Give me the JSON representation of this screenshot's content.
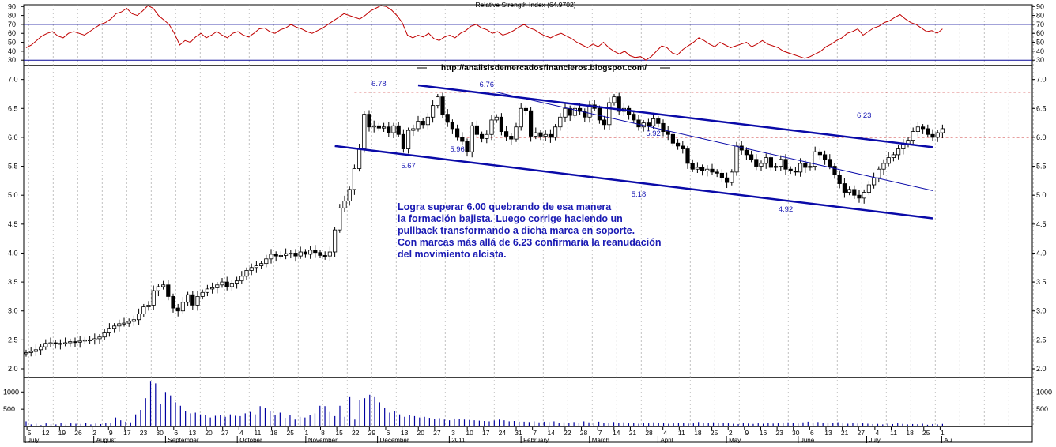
{
  "chart_data": [
    {
      "type": "line",
      "title": "Relative Strength Index (64.9702)",
      "yticks": [
        30,
        40,
        50,
        60,
        70,
        80,
        90
      ],
      "ylim": [
        24,
        92
      ],
      "reference_lines": [
        70,
        30
      ],
      "series": [
        {
          "color": "#c00000",
          "values": [
            44,
            47,
            52,
            57,
            60,
            62,
            57,
            55,
            60,
            62,
            60,
            58,
            62,
            66,
            70,
            72,
            76,
            82,
            84,
            88,
            82,
            80,
            85,
            91,
            88,
            80,
            75,
            70,
            60,
            47,
            52,
            50,
            56,
            60,
            55,
            58,
            62,
            58,
            55,
            60,
            62,
            58,
            56,
            60,
            65,
            66,
            62,
            60,
            64,
            66,
            70,
            67,
            65,
            62,
            60,
            63,
            66,
            70,
            74,
            78,
            82,
            80,
            78,
            76,
            80,
            85,
            88,
            91,
            90,
            86,
            80,
            72,
            58,
            55,
            58,
            56,
            60,
            54,
            52,
            56,
            58,
            55,
            60,
            63,
            68,
            70,
            66,
            64,
            60,
            62,
            58,
            60,
            63,
            67,
            70,
            66,
            64,
            60,
            57,
            55,
            58,
            60,
            57,
            54,
            50,
            47,
            44,
            48,
            45,
            50,
            44,
            40,
            37,
            40,
            35,
            33,
            34,
            30,
            34,
            40,
            46,
            44,
            38,
            36,
            42,
            46,
            50,
            55,
            52,
            48,
            45,
            50,
            47,
            44,
            46,
            48,
            50,
            45,
            48,
            52,
            48,
            46,
            44,
            40,
            38,
            36,
            34,
            32,
            34,
            37,
            40,
            45,
            48,
            52,
            55,
            60,
            62,
            65,
            58,
            62,
            66,
            68,
            72,
            74,
            78,
            81,
            76,
            72,
            70,
            66,
            62,
            63,
            60,
            65
          ]
        }
      ]
    },
    {
      "type": "candlestick",
      "yticks": [
        "7.0",
        "6.5",
        "6.0",
        "5.5",
        "5.0",
        "4.5",
        "4.0",
        "3.5",
        "3.0",
        "2.5",
        "2.0"
      ],
      "ylim": [
        1.85,
        7.2
      ],
      "watermark": "http://analisisdemercadosfinancieros.blogspot.com/",
      "price_labels": [
        {
          "text": "6.78",
          "index": 72
        },
        {
          "text": "6.76",
          "index": 94
        },
        {
          "text": "5.67",
          "index": 78
        },
        {
          "text": "5.96",
          "index": 88
        },
        {
          "text": "5.92",
          "index": 128
        },
        {
          "text": "5.18",
          "index": 125
        },
        {
          "text": "4.92",
          "index": 155
        },
        {
          "text": "6.23",
          "index": 171
        }
      ],
      "resistance_lines": [
        {
          "value": 6.78,
          "from_index": 67,
          "color": "#c00000",
          "style": "dashed"
        },
        {
          "value": 6.0,
          "from_index": 88,
          "color": "#c00000",
          "style": "dashed"
        }
      ],
      "trend_lines": [
        {
          "from": [
            80,
            6.9
          ],
          "to": [
            185,
            5.83
          ],
          "color": "#0a0aa8",
          "weight": "thick"
        },
        {
          "from": [
            63,
            5.85
          ],
          "to": [
            185,
            4.6
          ],
          "color": "#0a0aa8",
          "weight": "thick"
        },
        {
          "from": [
            96,
            6.78
          ],
          "to": [
            185,
            5.08
          ],
          "color": "#0a0aa8",
          "weight": "thin"
        }
      ],
      "close": [
        2.28,
        2.3,
        2.33,
        2.38,
        2.44,
        2.45,
        2.43,
        2.44,
        2.45,
        2.47,
        2.46,
        2.48,
        2.5,
        2.5,
        2.52,
        2.55,
        2.62,
        2.7,
        2.74,
        2.78,
        2.79,
        2.82,
        2.85,
        2.95,
        3.07,
        3.1,
        3.35,
        3.42,
        3.45,
        3.25,
        3.05,
        3.0,
        3.15,
        3.28,
        3.1,
        3.25,
        3.32,
        3.38,
        3.4,
        3.45,
        3.5,
        3.42,
        3.48,
        3.52,
        3.6,
        3.7,
        3.75,
        3.78,
        3.82,
        3.9,
        3.98,
        3.95,
        3.96,
        3.99,
        4.0,
        3.95,
        4.02,
        3.98,
        4.05,
        4.01,
        3.96,
        3.95,
        4.02,
        4.4,
        4.78,
        4.9,
        5.1,
        5.46,
        5.8,
        6.4,
        6.18,
        6.2,
        6.16,
        6.18,
        6.08,
        6.2,
        6.05,
        5.8,
        6.12,
        6.15,
        6.28,
        6.22,
        6.35,
        6.55,
        6.7,
        6.4,
        6.26,
        6.15,
        6.0,
        5.93,
        5.75,
        6.2,
        6.05,
        5.98,
        6.05,
        6.3,
        6.35,
        6.1,
        6.02,
        5.97,
        6.18,
        6.5,
        6.46,
        6.02,
        6.08,
        6.02,
        6.05,
        6.0,
        6.18,
        6.35,
        6.5,
        6.38,
        6.5,
        6.45,
        6.35,
        6.56,
        6.5,
        6.3,
        6.22,
        6.6,
        6.7,
        6.45,
        6.5,
        6.4,
        6.3,
        6.18,
        6.25,
        6.2,
        6.32,
        6.24,
        6.1,
        6.05,
        5.9,
        5.85,
        5.8,
        5.55,
        5.45,
        5.48,
        5.42,
        5.45,
        5.4,
        5.38,
        5.3,
        5.22,
        5.4,
        5.85,
        5.78,
        5.7,
        5.62,
        5.5,
        5.55,
        5.65,
        5.48,
        5.5,
        5.62,
        5.45,
        5.42,
        5.4,
        5.55,
        5.48,
        5.5,
        5.75,
        5.7,
        5.62,
        5.5,
        5.35,
        5.2,
        5.05,
        5.1,
        5.0,
        4.95,
        5.05,
        5.18,
        5.3,
        5.45,
        5.55,
        5.65,
        5.7,
        5.8,
        5.88,
        5.95,
        6.1,
        6.18,
        6.15,
        6.05,
        6.0,
        6.08,
        6.15
      ]
    },
    {
      "type": "bar",
      "series_name": "Volume",
      "yticks": [
        "1000",
        "500"
      ],
      "ylim": [
        0,
        1350
      ],
      "values": [
        150,
        60,
        80,
        40,
        90,
        70,
        60,
        110,
        55,
        90,
        80,
        75,
        95,
        60,
        85,
        70,
        110,
        95,
        260,
        180,
        140,
        120,
        350,
        480,
        820,
        1300,
        1250,
        650,
        1000,
        900,
        700,
        600,
        450,
        380,
        400,
        350,
        320,
        260,
        310,
        330,
        280,
        350,
        310,
        300,
        380,
        420,
        350,
        590,
        540,
        450,
        320,
        400,
        250,
        330,
        200,
        280,
        260,
        340,
        380,
        600,
        590,
        420,
        300,
        600,
        280,
        850,
        200,
        760,
        820,
        920,
        850,
        700,
        540,
        400,
        450,
        350,
        280,
        340,
        300,
        260,
        280,
        250,
        220,
        240,
        200,
        180,
        230,
        210,
        200,
        190,
        180,
        170,
        160,
        150,
        175,
        200,
        180,
        150,
        160,
        140,
        140,
        130,
        150,
        120,
        140,
        130,
        150,
        110,
        120,
        100,
        130,
        110,
        150,
        120,
        100,
        140,
        100,
        90,
        130,
        110,
        120,
        90,
        100,
        80,
        110,
        90,
        120,
        100,
        110,
        80,
        90,
        100,
        95,
        85,
        90,
        130,
        110,
        100,
        120,
        95,
        105,
        90,
        80,
        70,
        100,
        85,
        75,
        90,
        80,
        100,
        85,
        90,
        110,
        120,
        95,
        85,
        120,
        140,
        100,
        130,
        110,
        95,
        100,
        125,
        90,
        80,
        100,
        85,
        90,
        80,
        70,
        75,
        60,
        80,
        70,
        90,
        75,
        60,
        70,
        65,
        80,
        50,
        70,
        60,
        75
      ]
    },
    {
      "type": "date_axis",
      "day_labels": [
        {
          "text": "5",
          "index": 1
        },
        {
          "text": "12",
          "index": 6
        },
        {
          "text": "19",
          "index": 11
        },
        {
          "text": "26",
          "index": 16
        },
        {
          "text": "2",
          "index": 21
        },
        {
          "text": "9",
          "index": 26
        },
        {
          "text": "17",
          "index": 31
        },
        {
          "text": "23",
          "index": 36
        },
        {
          "text": "30",
          "index": 41
        },
        {
          "text": "6",
          "index": 46
        },
        {
          "text": "13",
          "index": 51
        },
        {
          "text": "20",
          "index": 56
        },
        {
          "text": "27",
          "index": 61
        },
        {
          "text": "4",
          "index": 66
        },
        {
          "text": "11",
          "index": 71
        },
        {
          "text": "18",
          "index": 76
        },
        {
          "text": "25",
          "index": 81
        },
        {
          "text": "1",
          "index": 86
        },
        {
          "text": "8",
          "index": 91
        },
        {
          "text": "15",
          "index": 96
        },
        {
          "text": "22",
          "index": 101
        },
        {
          "text": "29",
          "index": 106
        },
        {
          "text": "6",
          "index": 111
        },
        {
          "text": "13",
          "index": 116
        },
        {
          "text": "20",
          "index": 121
        },
        {
          "text": "27",
          "index": 126
        },
        {
          "text": "3",
          "index": 131
        },
        {
          "text": "10",
          "index": 136
        },
        {
          "text": "17",
          "index": 141
        },
        {
          "text": "24",
          "index": 146
        },
        {
          "text": "31",
          "index": 151
        },
        {
          "text": "7",
          "index": 156
        },
        {
          "text": "14",
          "index": 161
        },
        {
          "text": "22",
          "index": 166
        },
        {
          "text": "28",
          "index": 171
        },
        {
          "text": "7",
          "index": 176
        },
        {
          "text": "14",
          "index": 181
        },
        {
          "text": "21",
          "index": 186
        },
        {
          "text": "28",
          "index": 191
        },
        {
          "text": "4",
          "index": 196
        },
        {
          "text": "11",
          "index": 201
        },
        {
          "text": "18",
          "index": 206
        },
        {
          "text": "25",
          "index": 211
        },
        {
          "text": "2",
          "index": 216
        },
        {
          "text": "9",
          "index": 221
        },
        {
          "text": "16",
          "index": 226
        },
        {
          "text": "23",
          "index": 231
        },
        {
          "text": "30",
          "index": 236
        },
        {
          "text": "6",
          "index": 241
        },
        {
          "text": "13",
          "index": 246
        },
        {
          "text": "21",
          "index": 251
        },
        {
          "text": "27",
          "index": 256
        },
        {
          "text": "4",
          "index": 261
        },
        {
          "text": "11",
          "index": 266
        },
        {
          "text": "18",
          "index": 271
        },
        {
          "text": "25",
          "index": 276
        },
        {
          "text": "1",
          "index": 281
        }
      ],
      "month_labels": [
        {
          "text": "July",
          "index": 0
        },
        {
          "text": "August",
          "index": 21
        },
        {
          "text": "September",
          "index": 43
        },
        {
          "text": "October",
          "index": 65
        },
        {
          "text": "November",
          "index": 86
        },
        {
          "text": "December",
          "index": 108
        },
        {
          "text": "2011",
          "index": 130
        },
        {
          "text": "February",
          "index": 152
        },
        {
          "text": "March",
          "index": 173
        },
        {
          "text": "April",
          "index": 194
        },
        {
          "text": "May",
          "index": 215
        },
        {
          "text": "June",
          "index": 237
        },
        {
          "text": "July",
          "index": 258
        },
        {
          "text": "Au",
          "index": 281
        }
      ]
    }
  ],
  "annotation": {
    "text": "Logra superar 6.00 quebrando de esa manera\nla formación bajista. Luego corrige haciendo un\npullback transformando a dicha marca en soporte.\nCon marcas más allá de 6.23 confirmaría la reanudación\ndel movimiento alcista."
  },
  "colors": {
    "rsi_line": "#c00000",
    "trend_line": "#0a0aa8",
    "resistance": "#c00000",
    "label_text": "#1a1ab4",
    "candle": "#000000",
    "volume": "#0000a0",
    "grid": "#9a9a9a"
  }
}
